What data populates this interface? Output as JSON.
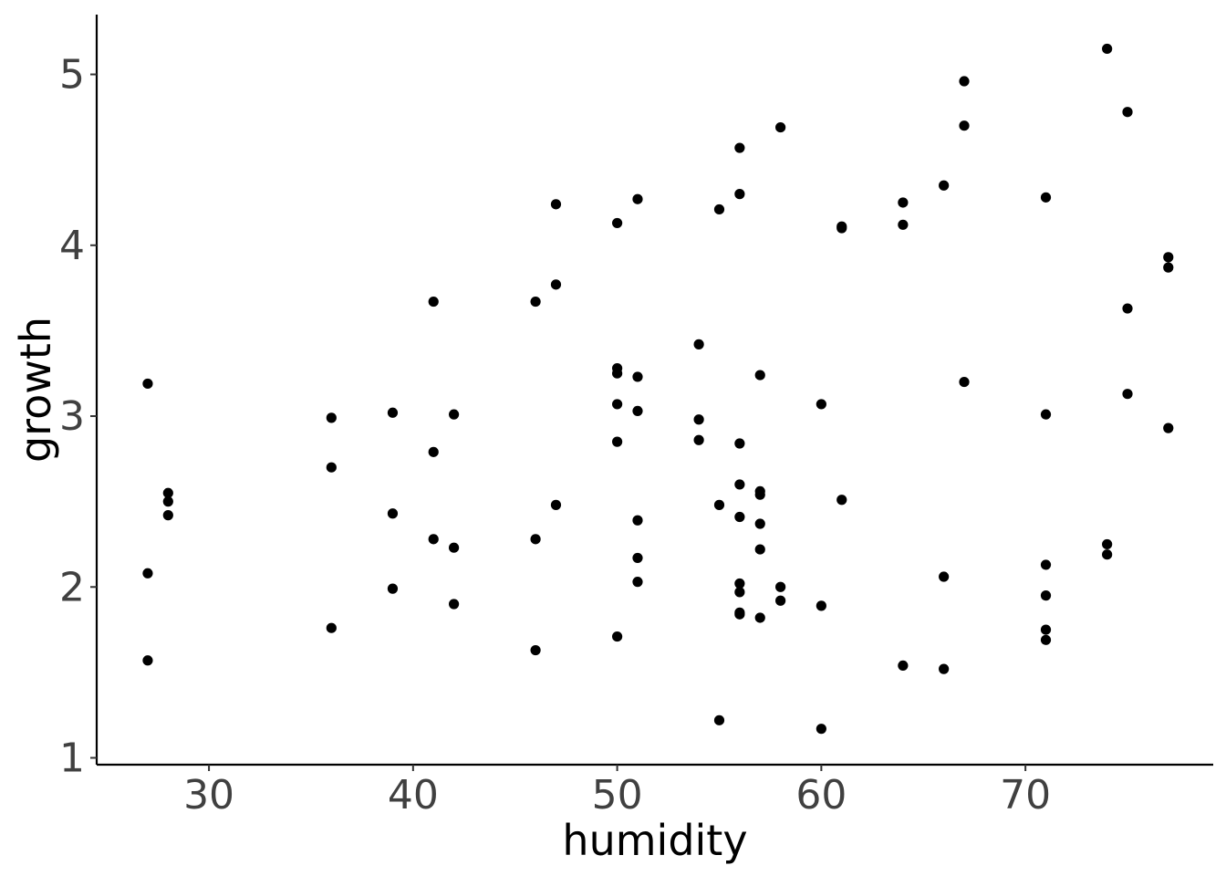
{
  "chart_data": {
    "type": "scatter",
    "title": "",
    "xlabel": "humidity",
    "ylabel": "growth",
    "xlim": [
      24.5,
      79.2
    ],
    "ylim": [
      0.96,
      5.35
    ],
    "xticks": [
      30,
      40,
      50,
      60,
      70
    ],
    "yticks": [
      1,
      2,
      3,
      4,
      5
    ],
    "xtick_labels": [
      "30",
      "40",
      "50",
      "60",
      "70"
    ],
    "ytick_labels": [
      "1",
      "2",
      "3",
      "4",
      "5"
    ],
    "grid": false,
    "legend": "none",
    "point_color": "#000000",
    "series": [
      {
        "points": [
          [
            27,
            3.19
          ],
          [
            27,
            2.08
          ],
          [
            27,
            1.57
          ],
          [
            28,
            2.55
          ],
          [
            28,
            2.5
          ],
          [
            28,
            2.42
          ],
          [
            36,
            2.99
          ],
          [
            36,
            2.7
          ],
          [
            36,
            1.76
          ],
          [
            39,
            3.02
          ],
          [
            39,
            2.43
          ],
          [
            39,
            1.99
          ],
          [
            41,
            3.67
          ],
          [
            41,
            2.79
          ],
          [
            41,
            2.28
          ],
          [
            42,
            3.01
          ],
          [
            42,
            2.23
          ],
          [
            42,
            1.9
          ],
          [
            46,
            3.67
          ],
          [
            46,
            2.28
          ],
          [
            46,
            1.63
          ],
          [
            47,
            4.24
          ],
          [
            47,
            3.77
          ],
          [
            47,
            2.48
          ],
          [
            50,
            4.13
          ],
          [
            50,
            3.28
          ],
          [
            50,
            3.25
          ],
          [
            50,
            3.07
          ],
          [
            50,
            2.85
          ],
          [
            50,
            1.71
          ],
          [
            51,
            4.27
          ],
          [
            51,
            3.23
          ],
          [
            51,
            3.03
          ],
          [
            51,
            2.39
          ],
          [
            51,
            2.17
          ],
          [
            51,
            2.03
          ],
          [
            54,
            3.42
          ],
          [
            54,
            2.98
          ],
          [
            54,
            2.86
          ],
          [
            55,
            4.21
          ],
          [
            55,
            2.48
          ],
          [
            55,
            1.22
          ],
          [
            56,
            4.57
          ],
          [
            56,
            4.3
          ],
          [
            56,
            2.84
          ],
          [
            56,
            2.6
          ],
          [
            56,
            2.41
          ],
          [
            56,
            2.02
          ],
          [
            56,
            1.97
          ],
          [
            56,
            1.85
          ],
          [
            56,
            1.84
          ],
          [
            57,
            3.24
          ],
          [
            57,
            2.56
          ],
          [
            57,
            2.54
          ],
          [
            57,
            2.37
          ],
          [
            57,
            2.22
          ],
          [
            57,
            1.82
          ],
          [
            58,
            4.69
          ],
          [
            58,
            2.0
          ],
          [
            58,
            1.92
          ],
          [
            60,
            3.07
          ],
          [
            60,
            1.89
          ],
          [
            60,
            1.17
          ],
          [
            61,
            4.11
          ],
          [
            61,
            4.1
          ],
          [
            61,
            2.51
          ],
          [
            64,
            4.25
          ],
          [
            64,
            4.12
          ],
          [
            64,
            1.54
          ],
          [
            66,
            4.35
          ],
          [
            66,
            2.06
          ],
          [
            66,
            1.52
          ],
          [
            67,
            4.96
          ],
          [
            67,
            4.7
          ],
          [
            67,
            3.2
          ],
          [
            71,
            4.28
          ],
          [
            71,
            3.01
          ],
          [
            71,
            2.13
          ],
          [
            71,
            1.95
          ],
          [
            71,
            1.75
          ],
          [
            71,
            1.69
          ],
          [
            74,
            5.15
          ],
          [
            74,
            2.25
          ],
          [
            74,
            2.19
          ],
          [
            75,
            4.78
          ],
          [
            75,
            3.63
          ],
          [
            75,
            3.13
          ],
          [
            77,
            3.93
          ],
          [
            77,
            3.87
          ],
          [
            77,
            2.93
          ]
        ]
      }
    ]
  }
}
